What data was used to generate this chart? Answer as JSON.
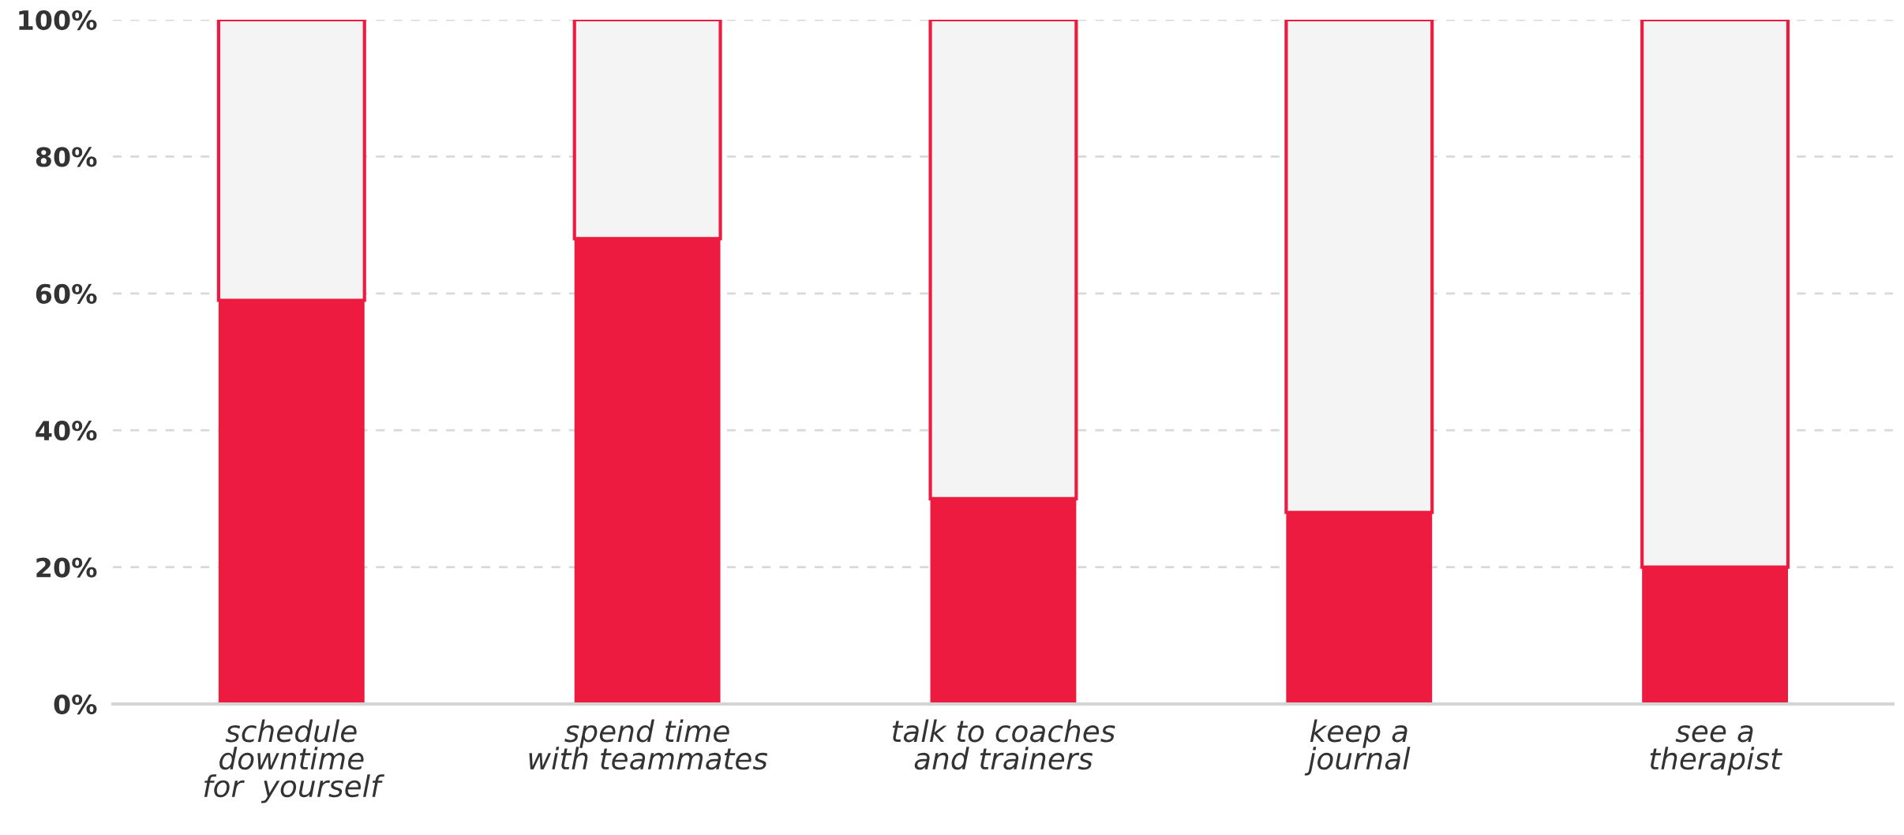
{
  "chart_data": {
    "type": "bar",
    "stacked": true,
    "categories": [
      "schedule\ndowntime\nfor  yourself",
      "spend time\nwith teammates",
      "talk to coaches\nand trainers",
      "keep a\njournal",
      "see a\ntherapist"
    ],
    "series": [
      {
        "color": "#ee1b40",
        "values": [
          59,
          68,
          30,
          28,
          20
        ]
      },
      {
        "color": "#f3f4f3",
        "values": [
          41,
          32,
          70,
          72,
          80
        ]
      }
    ],
    "ylim": [
      0,
      100
    ],
    "yticks": [
      {
        "value": 0,
        "label": "0%"
      },
      {
        "value": 20,
        "label": "20%"
      },
      {
        "value": 40,
        "label": "40%"
      },
      {
        "value": 60,
        "label": "60%"
      },
      {
        "value": 80,
        "label": "80%"
      },
      {
        "value": 100,
        "label": "100%"
      }
    ],
    "grid": "y",
    "legend": false
  }
}
